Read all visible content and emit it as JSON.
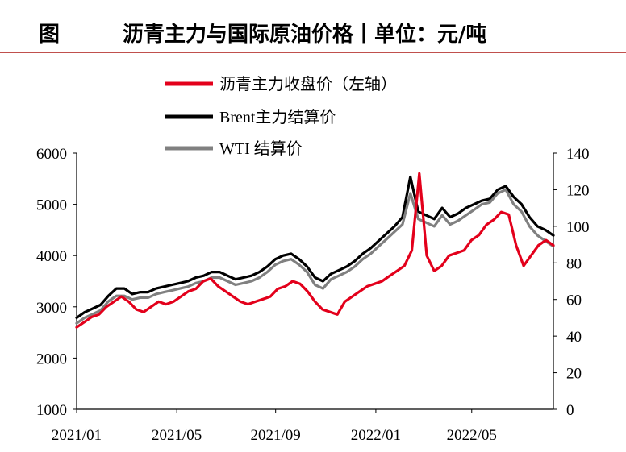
{
  "header": {
    "figure_label": "图",
    "title": "沥青主力与国际原油价格丨单位：元/吨"
  },
  "chart_data": {
    "type": "line",
    "x_tick_labels": [
      "2021/01",
      "2021/05",
      "2021/09",
      "2022/01",
      "2022/05"
    ],
    "y_left": {
      "ylim": [
        1000,
        6000
      ],
      "ticks": [
        "1000",
        "2000",
        "3000",
        "4000",
        "5000",
        "6000"
      ]
    },
    "y_right": {
      "ylim": [
        0,
        140
      ],
      "ticks": [
        "0",
        "20",
        "40",
        "60",
        "80",
        "100",
        "120",
        "140"
      ]
    },
    "series": [
      {
        "name": "沥青主力收盘价（左轴）",
        "axis": "left",
        "color": "#e3001b",
        "values": [
          2600,
          2700,
          2800,
          2850,
          3000,
          3100,
          3200,
          3100,
          2950,
          2900,
          3000,
          3100,
          3050,
          3100,
          3200,
          3300,
          3350,
          3500,
          3550,
          3400,
          3300,
          3200,
          3100,
          3050,
          3100,
          3150,
          3200,
          3350,
          3400,
          3500,
          3450,
          3300,
          3100,
          2950,
          2900,
          2850,
          3100,
          3200,
          3300,
          3400,
          3450,
          3500,
          3600,
          3700,
          3800,
          4100,
          5600,
          4000,
          3700,
          3800,
          4000,
          4050,
          4100,
          4300,
          4400,
          4600,
          4700,
          4850,
          4800,
          4200,
          3800,
          4000,
          4200,
          4300,
          4200
        ]
      },
      {
        "name": "Brent主力结算价",
        "axis": "right",
        "color": "#000000",
        "values": [
          50,
          53,
          55,
          57,
          62,
          66,
          66,
          63,
          64,
          64,
          66,
          67,
          68,
          69,
          70,
          72,
          73,
          75,
          75,
          73,
          71,
          72,
          73,
          75,
          78,
          82,
          84,
          85,
          82,
          78,
          72,
          70,
          74,
          76,
          78,
          81,
          85,
          88,
          92,
          96,
          100,
          105,
          127,
          108,
          106,
          104,
          110,
          105,
          107,
          110,
          112,
          114,
          115,
          120,
          122,
          116,
          112,
          105,
          100,
          98,
          95
        ]
      },
      {
        "name": "WTI 结算价",
        "axis": "right",
        "color": "#808080",
        "values": [
          47,
          50,
          52,
          54,
          59,
          62,
          62,
          60,
          61,
          61,
          63,
          64,
          65,
          66,
          67,
          69,
          70,
          72,
          72,
          70,
          68,
          69,
          70,
          72,
          75,
          79,
          81,
          82,
          79,
          75,
          68,
          66,
          71,
          73,
          75,
          78,
          82,
          85,
          89,
          93,
          97,
          101,
          118,
          104,
          102,
          100,
          106,
          101,
          103,
          106,
          109,
          112,
          113,
          118,
          120,
          112,
          108,
          100,
          95,
          92,
          89
        ]
      }
    ],
    "legend_position": "top-center"
  }
}
